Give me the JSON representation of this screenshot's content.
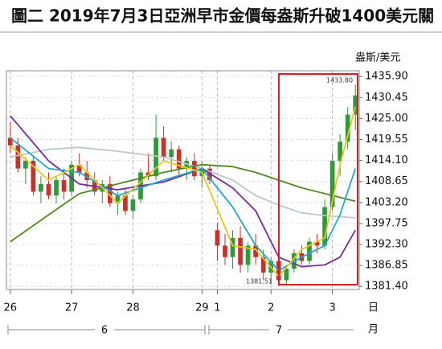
{
  "chart_data": {
    "type": "candlestick",
    "title": "圖二 2019年7月3日亞洲早市金價每盎斯升破1400美元關",
    "y_axis_label": "盎斯/美元",
    "x_unit": "日",
    "month_unit": "月",
    "months": [
      "6",
      "7"
    ],
    "annotations": [
      "1433.80",
      "1381.51"
    ],
    "ylim": [
      1380.6,
      1437.4
    ],
    "yticks": [
      {
        "value": 1381.4,
        "label": "1381.40"
      },
      {
        "value": 1386.85,
        "label": "1386.85"
      },
      {
        "value": 1392.3,
        "label": "1392.30"
      },
      {
        "value": 1397.75,
        "label": "1397.75"
      },
      {
        "value": 1403.2,
        "label": "1403.20"
      },
      {
        "value": 1408.65,
        "label": "1408.65"
      },
      {
        "value": 1414.1,
        "label": "1414.10"
      },
      {
        "value": 1419.55,
        "label": "1419.55"
      },
      {
        "value": 1425,
        "label": "1425.00"
      },
      {
        "value": 1430.45,
        "label": "1430.45"
      },
      {
        "value": 1435.9,
        "label": "1435.90"
      }
    ],
    "xlim": [
      -0.5,
      45.5
    ],
    "xticks": [
      {
        "value": 0,
        "label": "26"
      },
      {
        "value": 8,
        "label": "27"
      },
      {
        "value": 16,
        "label": "28"
      },
      {
        "value": 25,
        "label": "29"
      },
      {
        "value": 27,
        "label": "1"
      },
      {
        "value": 34,
        "label": "2"
      },
      {
        "value": 42,
        "label": "3"
      }
    ],
    "grid": true,
    "up_color": "#2e9a3a",
    "down_color": "#c8322a",
    "candles": {
      "open": [
        1420,
        1418,
        1412,
        1414,
        1406,
        1408,
        1405,
        1409,
        1406,
        1413,
        1411,
        1409,
        1406,
        1408,
        1403,
        1405,
        1401,
        1404,
        1411,
        1410,
        1420,
        1415,
        1417,
        1412,
        1414,
        1410,
        1412,
        1396,
        1392,
        1389,
        1394,
        1387,
        1392,
        1389,
        1385,
        1388,
        1383,
        1386,
        1390,
        1388,
        1393,
        1392,
        1402,
        1414,
        1419,
        1426
      ],
      "high": [
        1424,
        1420,
        1415,
        1415,
        1410,
        1411,
        1410,
        1412,
        1414,
        1416,
        1414,
        1411,
        1409,
        1410,
        1406,
        1407,
        1405,
        1412,
        1416,
        1426,
        1423,
        1419,
        1418,
        1415,
        1416,
        1414,
        1413,
        1398,
        1395,
        1396,
        1397,
        1393,
        1395,
        1391,
        1389,
        1389,
        1387,
        1391,
        1392,
        1394,
        1395,
        1404,
        1416,
        1421,
        1428,
        1433.8
      ],
      "low": [
        1416,
        1411,
        1408,
        1405,
        1403,
        1404,
        1403,
        1404,
        1405,
        1410,
        1407,
        1405,
        1403,
        1402,
        1400,
        1400,
        1399,
        1403,
        1409,
        1409,
        1414,
        1411,
        1410,
        1409,
        1409,
        1407,
        1408,
        1388,
        1387,
        1386,
        1385,
        1385,
        1387,
        1383,
        1382,
        1381.51,
        1382,
        1385,
        1387,
        1387,
        1390,
        1391,
        1401,
        1410,
        1417,
        1422
      ],
      "close": [
        1418,
        1412,
        1414,
        1406,
        1408,
        1405,
        1409,
        1406,
        1413,
        1411,
        1409,
        1406,
        1408,
        1403,
        1405,
        1401,
        1404,
        1411,
        1410,
        1420,
        1415,
        1417,
        1412,
        1414,
        1410,
        1412,
        1409,
        1392,
        1389,
        1394,
        1387,
        1392,
        1389,
        1385,
        1388,
        1383,
        1386,
        1390,
        1388,
        1393,
        1392,
        1402,
        1414,
        1419,
        1426,
        1431
      ]
    },
    "series": [
      {
        "color": "#b9c9c4",
        "x": [
          0,
          5,
          9,
          14,
          20,
          25,
          29,
          32,
          35,
          38,
          41,
          43,
          45
        ],
        "values": [
          1415,
          1417,
          1417.5,
          1416.5,
          1415,
          1412,
          1409,
          1405,
          1402.5,
          1400.5,
          1399.8,
          1399.5,
          1399.2
        ]
      },
      {
        "color": "#4f8a1f",
        "x": [
          0,
          5,
          9,
          14,
          20,
          25,
          29,
          32,
          35,
          38,
          41,
          43,
          45
        ],
        "values": [
          1393,
          1400,
          1405.5,
          1408,
          1411,
          1413,
          1412.5,
          1411,
          1409,
          1407,
          1405.5,
          1404.5,
          1403.5
        ]
      },
      {
        "color": "#7a2a9a",
        "x": [
          0,
          5,
          9,
          14,
          20,
          25,
          29,
          32,
          35,
          38,
          41,
          43,
          45
        ],
        "values": [
          1425.7,
          1414,
          1408,
          1406.5,
          1408.5,
          1412,
          1407,
          1401,
          1389,
          1386.5,
          1387,
          1389,
          1396
        ]
      },
      {
        "color": "#22a9c9",
        "x": [
          0,
          5,
          9,
          14,
          20,
          25,
          29,
          32,
          35,
          38,
          41,
          43,
          45
        ],
        "values": [
          1420,
          1412,
          1411,
          1405,
          1409,
          1412,
          1402,
          1392,
          1385.5,
          1389,
          1392,
          1400,
          1412
        ]
      },
      {
        "color": "#e8c81c",
        "x": [
          0,
          5,
          9,
          14,
          20,
          25,
          29,
          32,
          35,
          38,
          41,
          43,
          45
        ],
        "values": [
          1418,
          1409,
          1413,
          1403,
          1414,
          1411,
          1392,
          1391,
          1384,
          1391,
          1394,
          1413,
          1428
        ]
      }
    ]
  }
}
